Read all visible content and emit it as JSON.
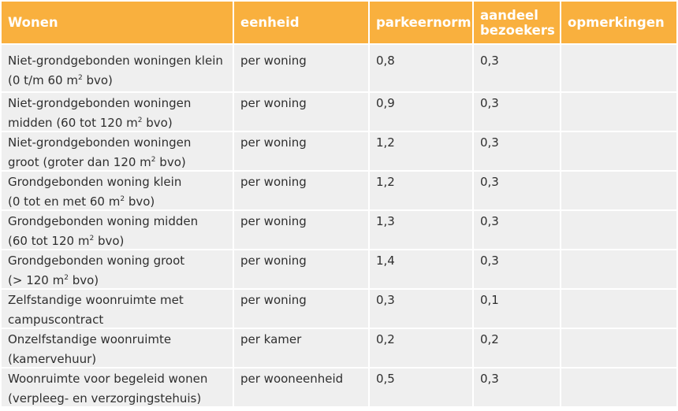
{
  "headers": [
    "Wonen",
    "eenheid",
    "parkeernorm",
    "aandeel\nbezoekers",
    "opmerkingen"
  ],
  "rows": [
    {
      "wonen": [
        "Niet-grondgebonden woningen klein",
        "(0 t/m 60 m² bvo)"
      ],
      "eenheid": "per woning",
      "parkeernorm": "0,8",
      "aandeel": "0,3",
      "opmerkingen": ""
    },
    {
      "wonen": [
        "Niet-grondgebonden woningen",
        "midden (60 tot 120 m² bvo)"
      ],
      "eenheid": "per woning",
      "parkeernorm": "0,9",
      "aandeel": "0,3",
      "opmerkingen": ""
    },
    {
      "wonen": [
        "Niet-grondgebonden woningen",
        "groot (groter dan 120 m² bvo)"
      ],
      "eenheid": "per woning",
      "parkeernorm": "1,2",
      "aandeel": "0,3",
      "opmerkingen": ""
    },
    {
      "wonen": [
        "Grondgebonden woning klein",
        "(0 tot en met 60 m² bvo)"
      ],
      "eenheid": "per woning",
      "parkeernorm": "1,2",
      "aandeel": "0,3",
      "opmerkingen": ""
    },
    {
      "wonen": [
        "Grondgebonden woning midden",
        "(60 tot 120 m² bvo)"
      ],
      "eenheid": "per woning",
      "parkeernorm": "1,3",
      "aandeel": "0,3",
      "opmerkingen": ""
    },
    {
      "wonen": [
        "Grondgebonden woning groot",
        "(> 120 m² bvo)"
      ],
      "eenheid": "per woning",
      "parkeernorm": "1,4",
      "aandeel": "0,3",
      "opmerkingen": ""
    },
    {
      "wonen": [
        "Zelfstandige woonruimte met",
        "campuscontract"
      ],
      "eenheid": "per woning",
      "parkeernorm": "0,3",
      "aandeel": "0,1",
      "opmerkingen": ""
    },
    {
      "wonen": [
        "Onzelfstandige woonruimte",
        "(kamervehuur)"
      ],
      "eenheid": "per kamer",
      "parkeernorm": "0,2",
      "aandeel": "0,2",
      "opmerkingen": ""
    },
    {
      "wonen": [
        "Woonruimte voor begeleid wonen",
        "(verpleeg- en verzorgingstehuis)"
      ],
      "eenheid": "per wooneenheid",
      "parkeernorm": "0,5",
      "aandeel": "0,3",
      "opmerkingen": ""
    }
  ]
}
